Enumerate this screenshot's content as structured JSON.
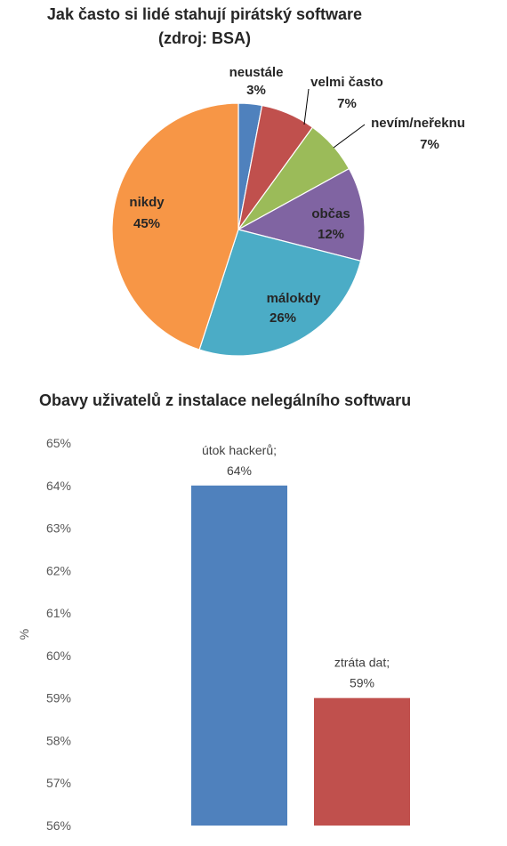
{
  "chart_data": [
    {
      "type": "pie",
      "title_line1": "Jak často si lidé stahují pirátský software",
      "title_line2": "(zdroj: BSA)",
      "slices": [
        {
          "label": "neustále",
          "value": 3,
          "value_label": "3%",
          "color": "#4f81bd"
        },
        {
          "label": "velmi často",
          "value": 7,
          "value_label": "7%",
          "color": "#c0504d"
        },
        {
          "label": "nevím/neřeknu",
          "value": 7,
          "value_label": "7%",
          "color": "#9bbb59"
        },
        {
          "label": "občas",
          "value": 12,
          "value_label": "12%",
          "color": "#8064a2"
        },
        {
          "label": "málokdy",
          "value": 26,
          "value_label": "26%",
          "color": "#4bacc6"
        },
        {
          "label": "nikdy",
          "value": 45,
          "value_label": "45%",
          "color": "#f79646"
        }
      ]
    },
    {
      "type": "bar",
      "title": "Obavy uživatelů z instalace nelegálního softwaru",
      "ylabel": "%",
      "ylim": [
        56,
        65
      ],
      "yticks": [
        "65%",
        "64%",
        "63%",
        "62%",
        "61%",
        "60%",
        "59%",
        "58%",
        "57%",
        "56%"
      ],
      "grid": false,
      "bars": [
        {
          "category": "útok hackerů;",
          "value": 64,
          "value_label": "64%",
          "color": "#4f81bd"
        },
        {
          "category": "ztráta dat;",
          "value": 59,
          "value_label": "59%",
          "color": "#c0504d"
        }
      ]
    }
  ]
}
